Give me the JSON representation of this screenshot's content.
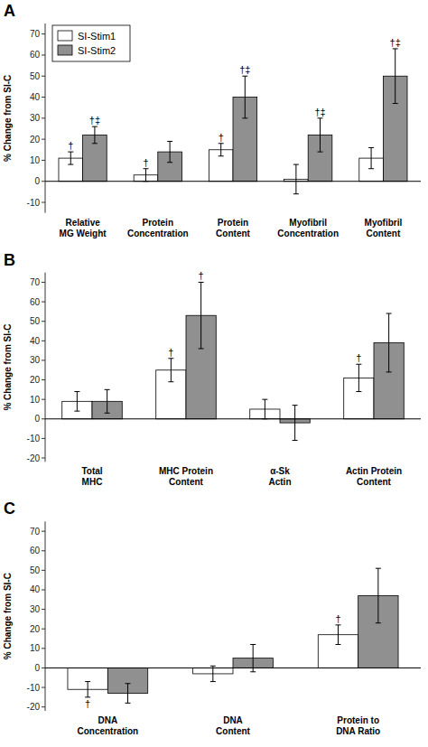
{
  "chart_data": [
    {
      "type": "bar",
      "title": "A",
      "categories": [
        "Relative\nMG Weight",
        "Protein\nConcentration",
        "Protein\nContent",
        "Myofibril\nConcentration",
        "Myofibril\nContent"
      ],
      "series": [
        {
          "name": "SI-Stim1",
          "color": "#ffffff",
          "values": [
            11,
            3,
            15,
            1,
            11
          ],
          "errors": [
            3,
            3,
            3,
            7,
            5
          ],
          "annotations": [
            "†",
            "†",
            "†",
            null,
            null
          ]
        },
        {
          "name": "SI-Stim2",
          "color": "#909090",
          "values": [
            22,
            14,
            40,
            22,
            50
          ],
          "errors": [
            4,
            5,
            10,
            8,
            13
          ],
          "annotations": [
            "†‡",
            null,
            "†‡",
            "†‡",
            "†‡"
          ]
        }
      ],
      "ylabel": "% Change from SI-C",
      "ylim": [
        -15,
        75
      ],
      "yticks": [
        -10,
        0,
        10,
        20,
        30,
        40,
        50,
        60,
        70
      ],
      "legend": "upper left"
    },
    {
      "type": "bar",
      "title": "B",
      "categories": [
        "Total\nMHC",
        "MHC Protein\nContent",
        "α-Sk\nActin",
        "Actin Protein\nContent"
      ],
      "series": [
        {
          "color": "#ffffff",
          "values": [
            9,
            25,
            5,
            21
          ],
          "errors": [
            5,
            6,
            5,
            7
          ],
          "annotations": [
            null,
            "†",
            null,
            "†"
          ]
        },
        {
          "color": "#909090",
          "values": [
            9,
            53,
            -2,
            39
          ],
          "errors": [
            6,
            17,
            9,
            15
          ],
          "annotations": [
            null,
            "†",
            null,
            null
          ]
        }
      ],
      "ylabel": "% Change from SI-C",
      "ylim": [
        -22,
        75
      ],
      "yticks": [
        -20,
        -10,
        0,
        10,
        20,
        30,
        40,
        50,
        60,
        70
      ]
    },
    {
      "type": "bar",
      "title": "C",
      "categories": [
        "DNA\nConcentration",
        "DNA\nContent",
        "Protein to\nDNA Ratio"
      ],
      "series": [
        {
          "color": "#ffffff",
          "values": [
            -11,
            -3,
            17
          ],
          "errors": [
            4,
            4,
            5
          ],
          "annotations": [
            "†",
            null,
            "†"
          ]
        },
        {
          "color": "#909090",
          "values": [
            -13,
            5,
            37
          ],
          "errors": [
            5,
            7,
            14
          ],
          "annotations": [
            null,
            null,
            null
          ]
        }
      ],
      "ylabel": "% Change from SI-C",
      "ylim": [
        -22,
        75
      ],
      "yticks": [
        -20,
        -10,
        0,
        10,
        20,
        30,
        40,
        50,
        60,
        70
      ]
    }
  ]
}
